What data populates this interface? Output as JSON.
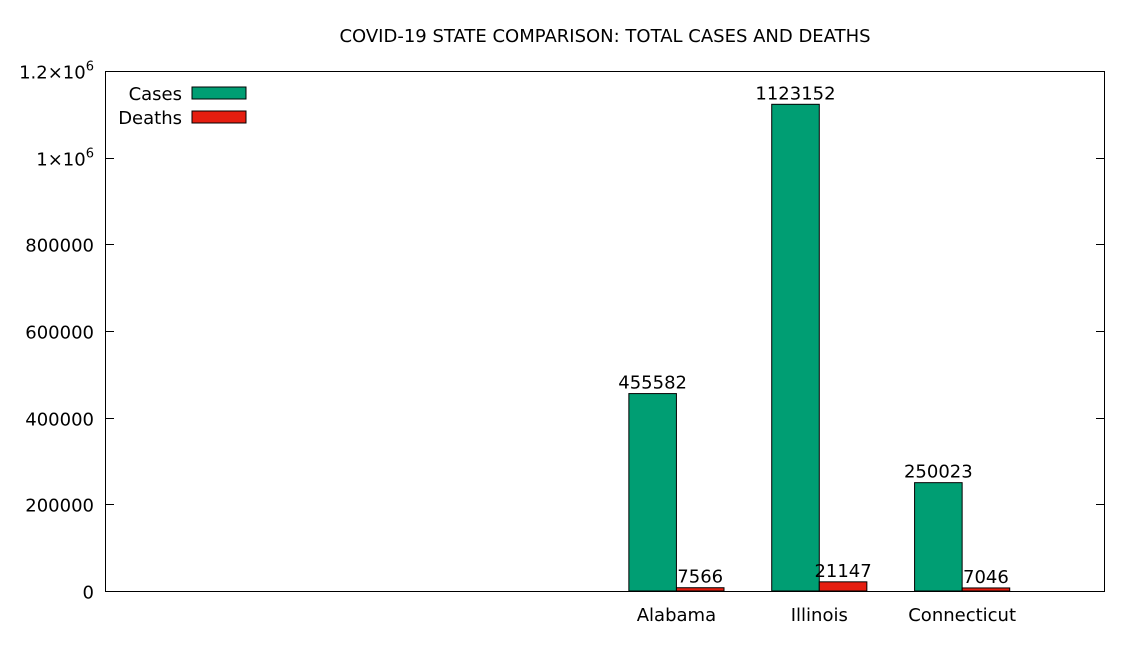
{
  "chart_data": {
    "type": "bar",
    "title": "COVID-19 STATE COMPARISON: TOTAL CASES AND DEATHS",
    "xlabel": "",
    "ylabel": "",
    "categories": [
      "Alabama",
      "Illinois",
      "Connecticut"
    ],
    "series": [
      {
        "name": "Cases",
        "values": [
          455582,
          1123152,
          250023
        ],
        "color": "#009e73"
      },
      {
        "name": "Deaths",
        "values": [
          7566,
          21147,
          7046
        ],
        "color": "#e51e10"
      }
    ],
    "ylim": [
      0,
      1200000
    ],
    "yticks": [
      {
        "value": 0,
        "base": "0",
        "exp": ""
      },
      {
        "value": 200000,
        "base": "200000",
        "exp": ""
      },
      {
        "value": 400000,
        "base": "400000",
        "exp": ""
      },
      {
        "value": 600000,
        "base": "600000",
        "exp": ""
      },
      {
        "value": 800000,
        "base": "800000",
        "exp": ""
      },
      {
        "value": 1000000,
        "base": "1×10",
        "exp": "6"
      },
      {
        "value": 1200000,
        "base": "1.2×10",
        "exp": "6"
      }
    ],
    "legend_position": "top-left",
    "grid": false
  }
}
